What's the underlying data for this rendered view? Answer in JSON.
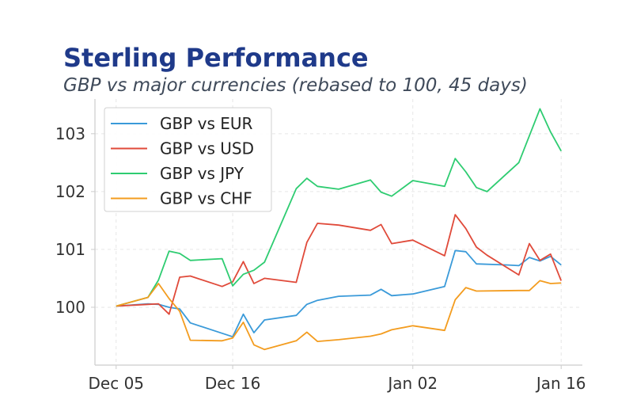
{
  "chart_data": {
    "type": "line",
    "title": "Sterling Performance",
    "subtitle": "GBP vs major currencies (rebased to 100, 45 days)",
    "xlabel": "",
    "ylabel": "",
    "x_ticks": [
      "Dec 05",
      "Dec 16",
      "Jan 02",
      "Jan 16"
    ],
    "y_ticks": [
      "100",
      "101",
      "102",
      "103"
    ],
    "ylim": [
      99.0,
      103.6
    ],
    "xlim": [
      "2024-12-03",
      "2025-01-18"
    ],
    "grid": true,
    "legend_position": "top-left",
    "series": [
      {
        "name": "GBP vs EUR",
        "color": "#3a9ad9",
        "x": [
          "2024-12-05",
          "2024-12-08",
          "2024-12-09",
          "2024-12-10",
          "2024-12-11",
          "2024-12-12",
          "2024-12-15",
          "2024-12-16",
          "2024-12-17",
          "2024-12-18",
          "2024-12-19",
          "2024-12-22",
          "2024-12-23",
          "2024-12-24",
          "2024-12-26",
          "2024-12-29",
          "2024-12-30",
          "2024-12-31",
          "2025-01-02",
          "2025-01-05",
          "2025-01-06",
          "2025-01-07",
          "2025-01-08",
          "2025-01-11",
          "2025-01-12",
          "2025-01-13",
          "2025-01-14",
          "2025-01-15",
          "2025-01-16"
        ],
        "values": [
          100.02,
          100.06,
          100.05,
          100.0,
          99.97,
          99.73,
          99.55,
          99.49,
          99.88,
          99.56,
          99.78,
          99.86,
          100.05,
          100.12,
          100.19,
          100.21,
          100.31,
          100.2,
          100.23,
          100.36,
          100.98,
          100.96,
          100.75,
          100.73,
          100.72,
          100.86,
          100.8,
          100.88,
          100.73
        ]
      },
      {
        "name": "GBP vs USD",
        "color": "#e04a3a",
        "x": [
          "2024-12-05",
          "2024-12-08",
          "2024-12-09",
          "2024-12-10",
          "2024-12-11",
          "2024-12-12",
          "2024-12-15",
          "2024-12-16",
          "2024-12-17",
          "2024-12-18",
          "2024-12-19",
          "2024-12-22",
          "2024-12-23",
          "2024-12-24",
          "2024-12-26",
          "2024-12-29",
          "2024-12-30",
          "2024-12-31",
          "2025-01-02",
          "2025-01-05",
          "2025-01-06",
          "2025-01-07",
          "2025-01-08",
          "2025-01-09",
          "2025-01-12",
          "2025-01-13",
          "2025-01-14",
          "2025-01-15",
          "2025-01-16"
        ],
        "values": [
          100.02,
          100.05,
          100.06,
          99.88,
          100.52,
          100.54,
          100.36,
          100.44,
          100.79,
          100.41,
          100.5,
          100.43,
          101.12,
          101.45,
          101.42,
          101.33,
          101.43,
          101.1,
          101.16,
          100.89,
          101.6,
          101.36,
          101.04,
          100.9,
          100.56,
          101.1,
          100.81,
          100.92,
          100.46
        ]
      },
      {
        "name": "GBP vs JPY",
        "color": "#2ecc71",
        "x": [
          "2024-12-05",
          "2024-12-08",
          "2024-12-09",
          "2024-12-10",
          "2024-12-11",
          "2024-12-12",
          "2024-12-15",
          "2024-12-16",
          "2024-12-17",
          "2024-12-18",
          "2024-12-19",
          "2024-12-22",
          "2024-12-23",
          "2024-12-24",
          "2024-12-26",
          "2024-12-29",
          "2024-12-30",
          "2024-12-31",
          "2025-01-02",
          "2025-01-05",
          "2025-01-06",
          "2025-01-07",
          "2025-01-08",
          "2025-01-09",
          "2025-01-12",
          "2025-01-14",
          "2025-01-15",
          "2025-01-16"
        ],
        "values": [
          100.02,
          100.17,
          100.47,
          100.97,
          100.93,
          100.81,
          100.84,
          100.37,
          100.57,
          100.64,
          100.78,
          102.05,
          102.23,
          102.09,
          102.04,
          102.2,
          101.99,
          101.92,
          102.19,
          102.09,
          102.57,
          102.34,
          102.07,
          102.0,
          102.5,
          103.43,
          103.03,
          102.7
        ]
      },
      {
        "name": "GBP vs CHF",
        "color": "#f39c1f",
        "x": [
          "2024-12-05",
          "2024-12-08",
          "2024-12-09",
          "2024-12-10",
          "2024-12-11",
          "2024-12-12",
          "2024-12-15",
          "2024-12-16",
          "2024-12-17",
          "2024-12-18",
          "2024-12-19",
          "2024-12-22",
          "2024-12-23",
          "2024-12-24",
          "2024-12-26",
          "2024-12-29",
          "2024-12-30",
          "2024-12-31",
          "2025-01-02",
          "2025-01-05",
          "2025-01-06",
          "2025-01-07",
          "2025-01-08",
          "2025-01-12",
          "2025-01-13",
          "2025-01-14",
          "2025-01-15",
          "2025-01-16"
        ],
        "values": [
          100.02,
          100.17,
          100.41,
          100.15,
          99.93,
          99.43,
          99.42,
          99.47,
          99.74,
          99.35,
          99.27,
          99.42,
          99.57,
          99.41,
          99.44,
          99.5,
          99.54,
          99.61,
          99.68,
          99.6,
          100.13,
          100.34,
          100.28,
          100.29,
          100.29,
          100.46,
          100.41,
          100.42
        ]
      }
    ]
  }
}
